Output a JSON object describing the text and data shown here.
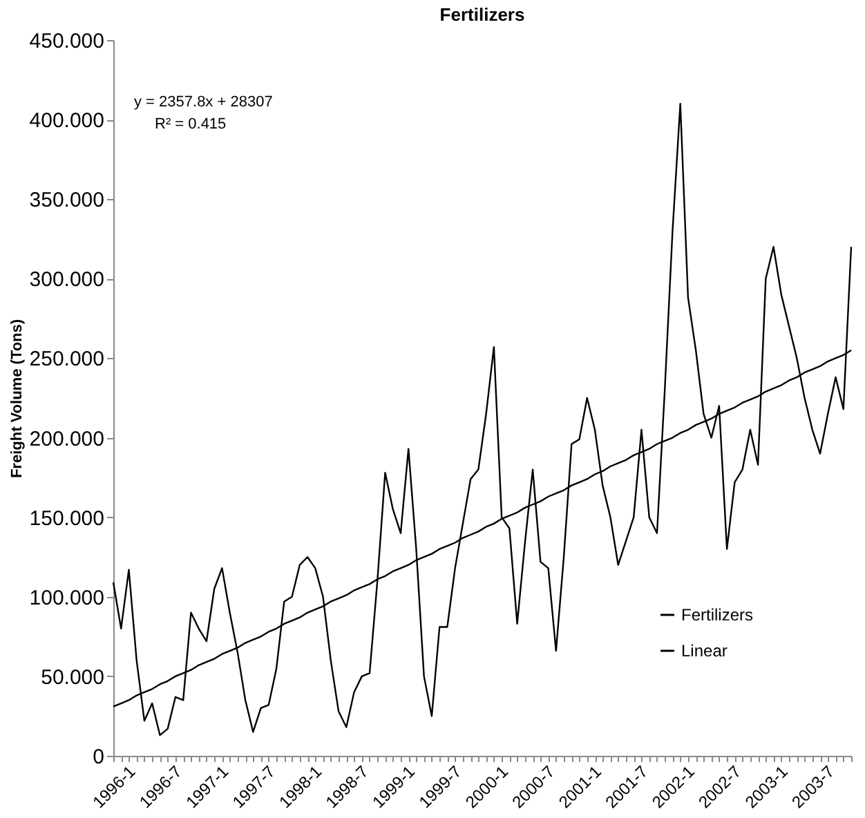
{
  "chart_data": {
    "type": "line",
    "title": "Fertilizers",
    "ylabel": "Freight Volume (Tons)",
    "categories": [
      "1996-1",
      null,
      null,
      null,
      null,
      null,
      "1996-7",
      null,
      null,
      null,
      null,
      null,
      "1997-1",
      null,
      null,
      null,
      null,
      null,
      "1997-7",
      null,
      null,
      null,
      null,
      null,
      "1998-1",
      null,
      null,
      null,
      null,
      null,
      "1998-7",
      null,
      null,
      null,
      null,
      null,
      "1999-1",
      null,
      null,
      null,
      null,
      null,
      "1999-7",
      null,
      null,
      null,
      null,
      null,
      "2000-1",
      null,
      null,
      null,
      null,
      null,
      "2000-7",
      null,
      null,
      null,
      null,
      null,
      "2001-1",
      null,
      null,
      null,
      null,
      null,
      "2001-7",
      null,
      null,
      null,
      null,
      null,
      "2002-1",
      null,
      null,
      null,
      null,
      null,
      "2002-7",
      null,
      null,
      null,
      null,
      null,
      "2003-1",
      null,
      null,
      null,
      null,
      null,
      "2003-7",
      null,
      null,
      null,
      null,
      null
    ],
    "series": [
      {
        "name": "Fertilizers",
        "color": "#000000",
        "values": [
          109,
          80,
          117,
          60,
          22,
          33,
          13,
          17,
          37,
          35,
          90,
          80,
          72,
          105,
          118,
          90,
          65,
          35,
          15,
          30,
          32,
          55,
          97,
          100,
          120,
          125,
          118,
          100,
          60,
          28,
          18,
          40,
          50,
          52,
          110,
          178,
          155,
          140,
          193,
          130,
          50,
          25,
          81,
          81,
          118,
          146,
          174,
          180,
          215,
          257,
          150,
          143,
          83,
          134,
          180,
          122,
          118,
          66,
          125,
          196,
          199,
          225,
          205,
          170,
          150,
          120,
          135,
          150,
          205,
          150,
          140,
          230,
          330,
          410,
          288,
          255,
          215,
          200,
          220,
          130,
          172,
          180,
          205,
          183,
          300,
          320,
          290,
          270,
          250,
          225,
          205,
          190,
          215,
          238,
          218,
          320
        ]
      },
      {
        "name": "Linear",
        "color": "#000000",
        "values": [
          31,
          33,
          35,
          38,
          40,
          42,
          45,
          47,
          50,
          52,
          54,
          57,
          59,
          61,
          64,
          66,
          68,
          71,
          73,
          75,
          78,
          80,
          83,
          85,
          87,
          90,
          92,
          94,
          97,
          99,
          101,
          104,
          106,
          108,
          111,
          113,
          116,
          118,
          120,
          123,
          125,
          127,
          130,
          132,
          134,
          137,
          139,
          141,
          144,
          146,
          149,
          151,
          153,
          156,
          158,
          160,
          163,
          165,
          167,
          170,
          172,
          174,
          177,
          179,
          182,
          184,
          186,
          189,
          191,
          193,
          196,
          198,
          200,
          203,
          205,
          208,
          210,
          212,
          215,
          217,
          219,
          222,
          224,
          226,
          229,
          231,
          233,
          236,
          238,
          241,
          243,
          245,
          248,
          250,
          252,
          255
        ]
      }
    ],
    "ylim": [
      0,
      450
    ],
    "yticks": [
      0,
      {
        "value": 50,
        "label": "50.000"
      },
      {
        "value": 100,
        "label": "100.000"
      },
      {
        "value": 150,
        "label": "150.000"
      },
      {
        "value": 200,
        "label": "200.000"
      },
      {
        "value": 250,
        "label": "250.000"
      },
      {
        "value": 300,
        "label": "300.000"
      },
      {
        "value": 350,
        "label": "350.000"
      },
      {
        "value": 400,
        "label": "400.000"
      },
      {
        "value": 450,
        "label": "450.000"
      }
    ],
    "annotations": [
      "y = 2357.8x + 28307",
      "R² = 0.415"
    ],
    "legend": "bottom right",
    "grid": false,
    "marker": "none",
    "line_style": "solid"
  }
}
